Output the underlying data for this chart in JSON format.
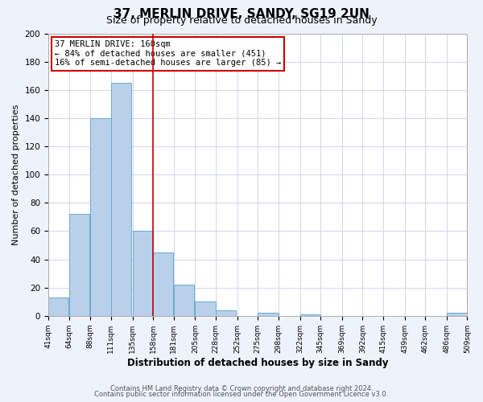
{
  "title": "37, MERLIN DRIVE, SANDY, SG19 2UN",
  "subtitle": "Size of property relative to detached houses in Sandy",
  "xlabel": "Distribution of detached houses by size in Sandy",
  "ylabel": "Number of detached properties",
  "bar_color": "#b8d0ea",
  "bar_edge_color": "#6aaad4",
  "vline_x": 158,
  "vline_color": "#cc0000",
  "annotation_line1": "37 MERLIN DRIVE: 160sqm",
  "annotation_line2": "← 84% of detached houses are smaller (451)",
  "annotation_line3": "16% of semi-detached houses are larger (85) →",
  "bins_left": [
    41,
    64,
    88,
    111,
    135,
    158,
    181,
    205,
    228,
    252,
    275,
    298,
    322,
    345,
    369,
    392,
    415,
    439,
    462,
    486
  ],
  "bin_width": 23,
  "counts": [
    13,
    72,
    140,
    165,
    60,
    45,
    22,
    10,
    4,
    0,
    2,
    0,
    1,
    0,
    0,
    0,
    0,
    0,
    0,
    2
  ],
  "ylim": [
    0,
    200
  ],
  "yticks": [
    0,
    20,
    40,
    60,
    80,
    100,
    120,
    140,
    160,
    180,
    200
  ],
  "xtick_labels": [
    "41sqm",
    "64sqm",
    "88sqm",
    "111sqm",
    "135sqm",
    "158sqm",
    "181sqm",
    "205sqm",
    "228sqm",
    "252sqm",
    "275sqm",
    "298sqm",
    "322sqm",
    "345sqm",
    "369sqm",
    "392sqm",
    "415sqm",
    "439sqm",
    "462sqm",
    "486sqm",
    "509sqm"
  ],
  "footer_line1": "Contains HM Land Registry data © Crown copyright and database right 2024.",
  "footer_line2": "Contains public sector information licensed under the Open Government Licence v3.0.",
  "background_color": "#eef2fb",
  "plot_bg_color": "#ffffff",
  "title_fontsize": 11,
  "subtitle_fontsize": 9,
  "annotation_box_edge": "#cc0000",
  "grid_color": "#c8d0e8"
}
